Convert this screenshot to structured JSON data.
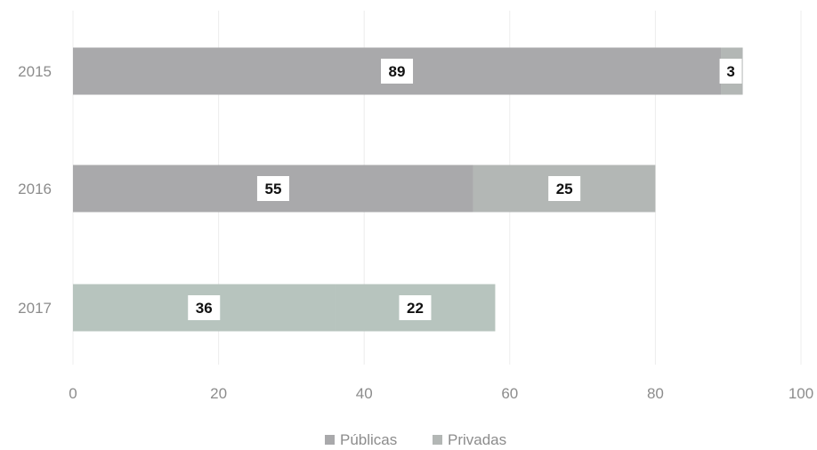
{
  "chart_data": {
    "type": "bar",
    "orientation": "horizontal",
    "stacked": true,
    "categories": [
      "2015",
      "2016",
      "2017"
    ],
    "series": [
      {
        "name": "Públicas",
        "values": [
          89,
          55,
          36
        ]
      },
      {
        "name": "Privadas",
        "values": [
          3,
          25,
          22
        ]
      }
    ],
    "xlim": [
      0,
      100
    ],
    "xticks": [
      0,
      20,
      40,
      60,
      80,
      100
    ],
    "grid": "vertical",
    "legend": "bottom",
    "colors": {
      "publicas": "#a9a9ab",
      "privadas": "#b3b7b5",
      "bar_2017": "#b7c4be",
      "grid": "#ececec",
      "label_box": "#ffffff"
    }
  }
}
